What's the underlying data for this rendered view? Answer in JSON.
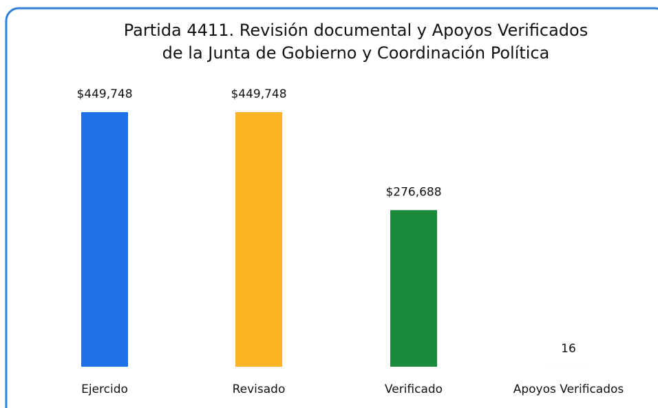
{
  "chart_data": {
    "type": "bar",
    "title": [
      "Partida 4411. Revisión documental y Apoyos Verificados",
      "de la Junta de Gobierno y Coordinación Política"
    ],
    "categories": [
      "Ejercido",
      "Revisado",
      "Verificado",
      "Apoyos Verificados"
    ],
    "values": [
      449748,
      449748,
      276688,
      16
    ],
    "value_labels": [
      "$449,748",
      "$449,748",
      "$276,688",
      "16"
    ],
    "colors": [
      "#1f6fe6",
      "#fbb424",
      "#1b8a3c",
      "#4472c4"
    ]
  }
}
